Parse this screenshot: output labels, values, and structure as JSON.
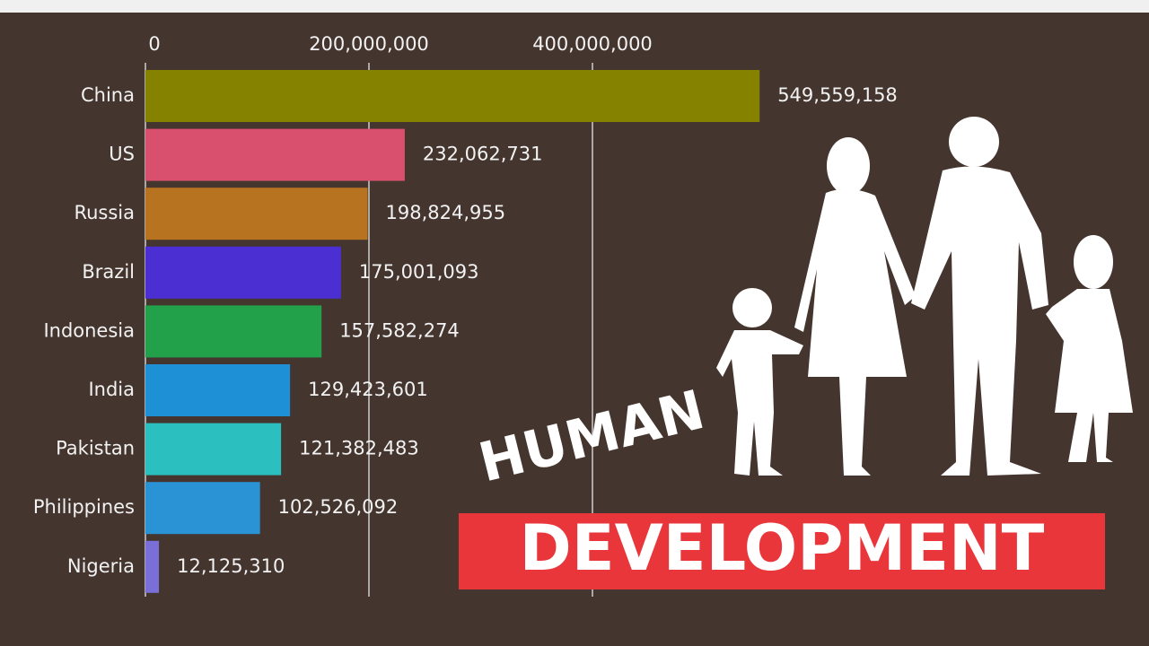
{
  "chart_data": {
    "type": "bar",
    "orientation": "horizontal",
    "categories": [
      "China",
      "US",
      "Russia",
      "Brazil",
      "Indonesia",
      "India",
      "Pakistan",
      "Philippines",
      "Nigeria"
    ],
    "values": [
      549559158,
      232062731,
      198824955,
      175001093,
      157582274,
      129423601,
      121382483,
      102526092,
      12125310
    ],
    "value_labels": [
      "549,559,158",
      "232,062,731",
      "198,824,955",
      "175,001,093",
      "157,582,274",
      "129,423,601",
      "121,382,483",
      "102,526,092",
      "12,125,310"
    ],
    "colors": [
      "#858200",
      "#d94f6e",
      "#b87320",
      "#4b2fd3",
      "#23a04a",
      "#1e90d6",
      "#2bbfbf",
      "#2a93d5",
      "#7a6fd6"
    ],
    "xlim": [
      0,
      600000000
    ],
    "xticks": [
      0,
      {
        "value": 200000000,
        "label": "200,000,000"
      },
      {
        "value": 400000000,
        "label": "400,000,000"
      }
    ],
    "grid": true
  },
  "overlay": {
    "line1": "HUMAN",
    "line2": "DEVELOPMENT"
  }
}
